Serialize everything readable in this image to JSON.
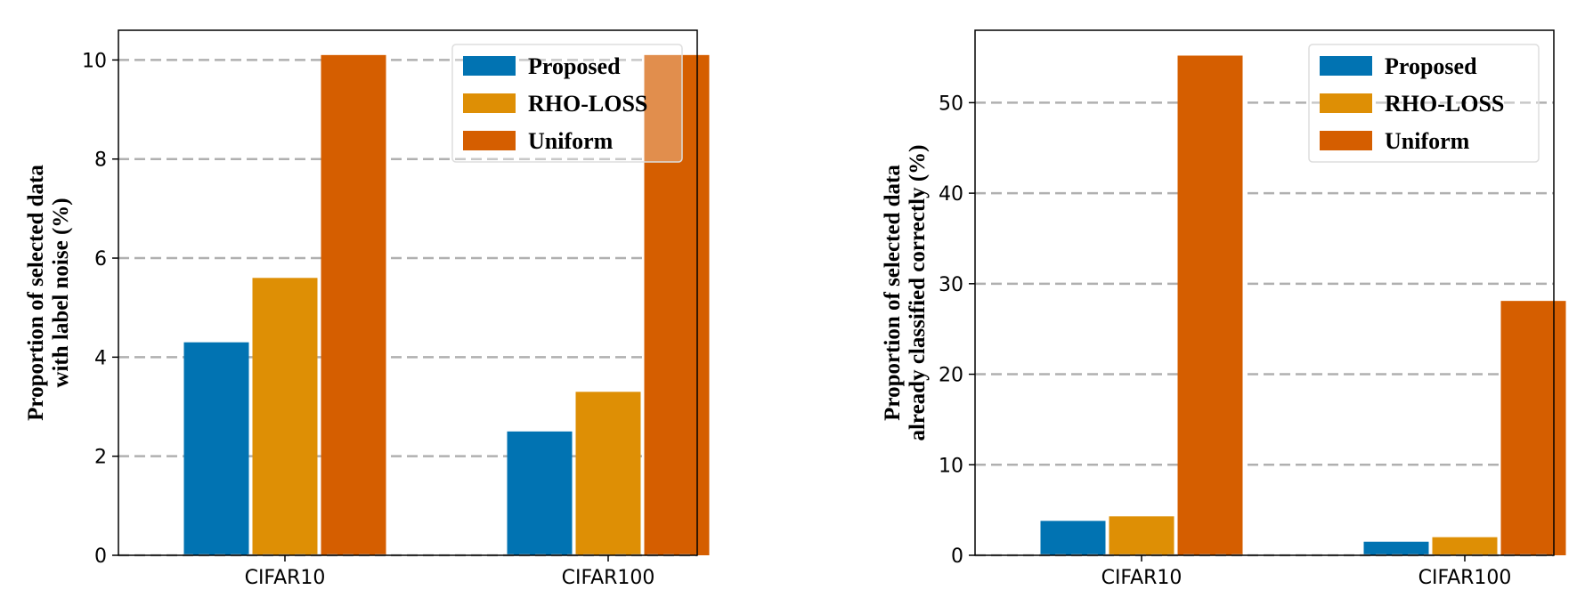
{
  "chart_data": [
    {
      "type": "bar",
      "categories": [
        "CIFAR10",
        "CIFAR100"
      ],
      "series": [
        {
          "name": "Proposed",
          "values": [
            4.3,
            2.5
          ],
          "color": "#0173b2"
        },
        {
          "name": "RHO-LOSS",
          "values": [
            5.6,
            3.3
          ],
          "color": "#de8f05"
        },
        {
          "name": "Uniform",
          "values": [
            10.1,
            10.1
          ],
          "color": "#d55e00"
        }
      ],
      "ylabel_lines": [
        "Proportion of selected data",
        "with label noise (%)"
      ],
      "ylim": [
        0,
        10.6
      ],
      "yticks": [
        0,
        2,
        4,
        6,
        8,
        10
      ],
      "grid": true,
      "legend": "top-right"
    },
    {
      "type": "bar",
      "categories": [
        "CIFAR10",
        "CIFAR100"
      ],
      "series": [
        {
          "name": "Proposed",
          "values": [
            3.8,
            1.5
          ],
          "color": "#0173b2"
        },
        {
          "name": "RHO-LOSS",
          "values": [
            4.3,
            2.0
          ],
          "color": "#de8f05"
        },
        {
          "name": "Uniform",
          "values": [
            55.2,
            28.1
          ],
          "color": "#d55e00"
        }
      ],
      "ylabel_lines": [
        "Proportion of selected data",
        "already classified correctly (%)"
      ],
      "ylim": [
        0,
        58
      ],
      "yticks": [
        0,
        10,
        20,
        30,
        40,
        50
      ],
      "grid": true,
      "legend": "top-right"
    }
  ]
}
